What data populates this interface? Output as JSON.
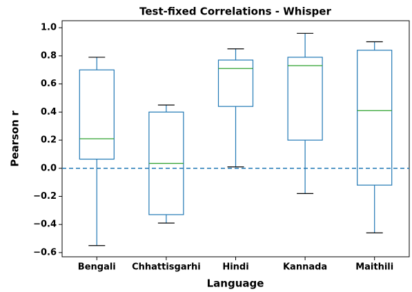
{
  "chart_data": {
    "type": "box",
    "title": "Test-fixed Correlations - Whisper",
    "x_label": "Language",
    "y_label": "Pearson r",
    "categories": [
      "Bengali",
      "Chhattisgarhi",
      "Hindi",
      "Kannada",
      "Maithili"
    ],
    "boxes": [
      {
        "min": -0.55,
        "q1": 0.065,
        "median": 0.21,
        "q3": 0.7,
        "max": 0.79
      },
      {
        "min": -0.39,
        "q1": -0.33,
        "median": 0.035,
        "q3": 0.4,
        "max": 0.45
      },
      {
        "min": 0.01,
        "q1": 0.44,
        "median": 0.71,
        "q3": 0.77,
        "max": 0.85
      },
      {
        "min": -0.18,
        "q1": 0.2,
        "median": 0.73,
        "q3": 0.79,
        "max": 0.96
      },
      {
        "min": -0.46,
        "q1": -0.12,
        "median": 0.41,
        "q3": 0.84,
        "max": 0.9
      }
    ],
    "color": "#1f77b4",
    "median_color": "#2ca02c",
    "reference_line": {
      "value": 0,
      "color": "#1f77b4",
      "style": "dashed"
    },
    "ylim": [
      -0.63,
      1.05
    ],
    "yticks": [
      {
        "value": -0.6,
        "label": "−0.6"
      },
      {
        "value": -0.4,
        "label": "−0.4"
      },
      {
        "value": -0.2,
        "label": "−0.2"
      },
      {
        "value": 0,
        "label": "0.0"
      },
      {
        "value": 0.2,
        "label": "0.2"
      },
      {
        "value": 0.4,
        "label": "0.4"
      },
      {
        "value": 0.6,
        "label": "0.6"
      },
      {
        "value": 0.8,
        "label": "0.8"
      },
      {
        "value": 1.0,
        "label": "1.0"
      }
    ]
  }
}
